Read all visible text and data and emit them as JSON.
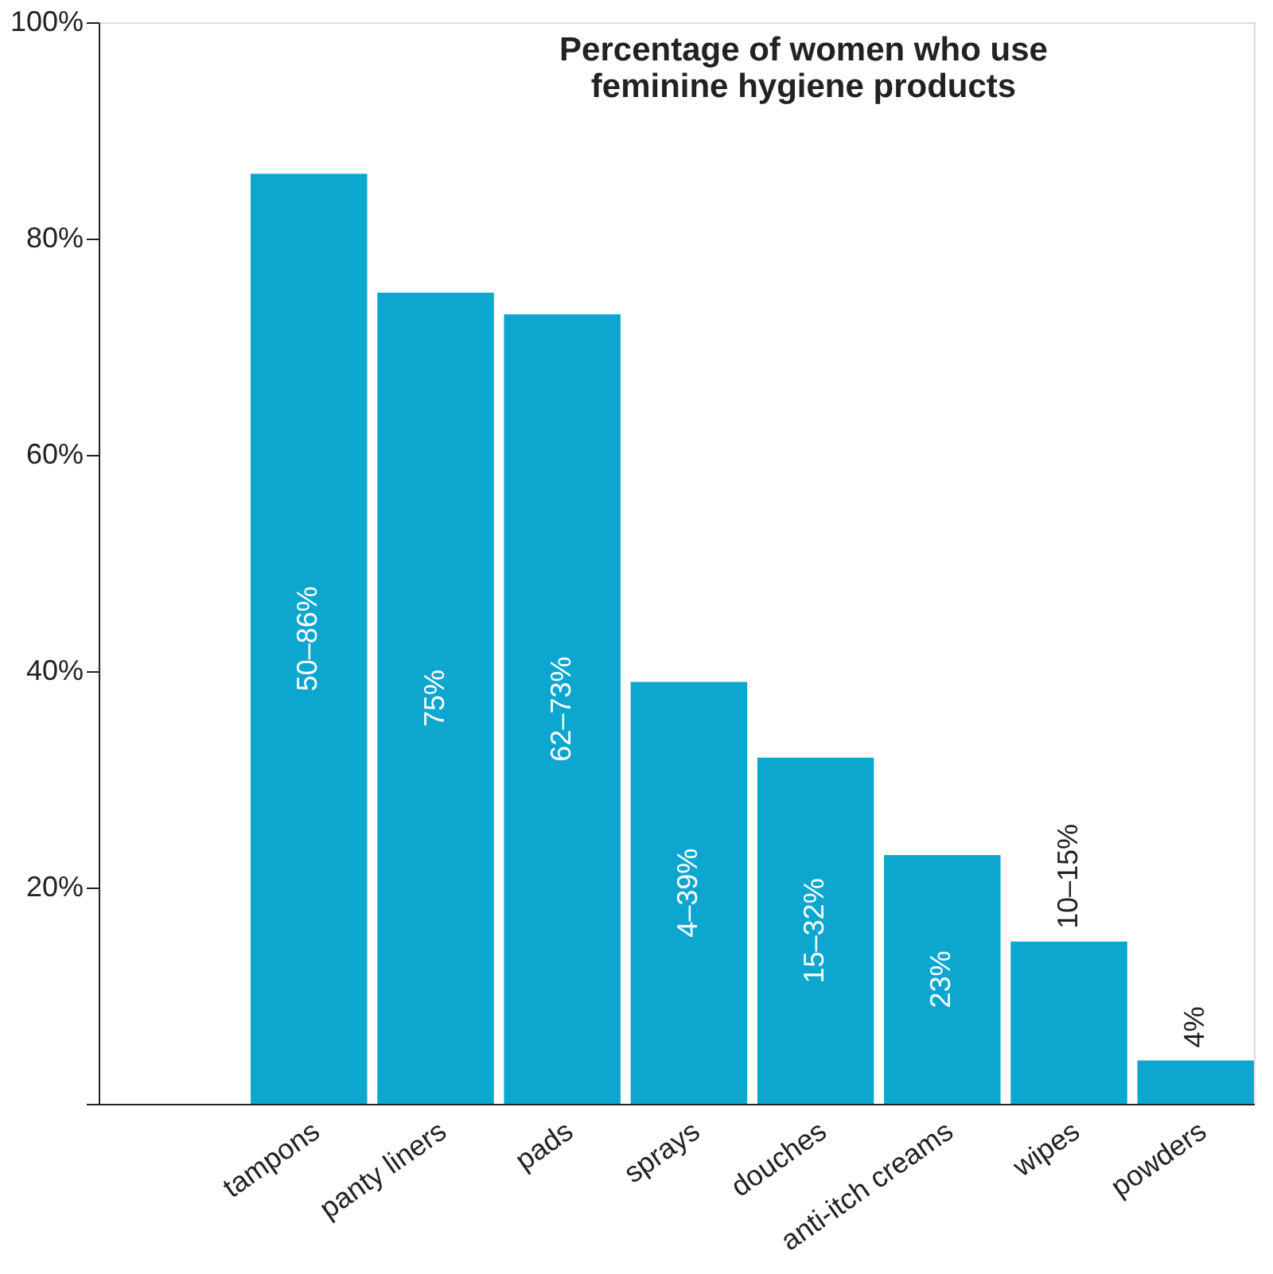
{
  "chart_data": {
    "type": "bar",
    "title": "Percentage of women who use feminine hygiene products",
    "categories": [
      "tampons",
      "panty liners",
      "pads",
      "sprays",
      "douches",
      "anti-itch creams",
      "wipes",
      "powders"
    ],
    "values": [
      86,
      75,
      73,
      39,
      32,
      23,
      15,
      4
    ],
    "annotations": [
      "50–86%",
      "75%",
      "62–73%",
      "4–39%",
      "15–32%",
      "23%",
      "10–15%",
      "4%"
    ],
    "color": "#0ca6cf",
    "ylim": [
      0,
      100
    ],
    "yticks": [
      {
        "value": 0,
        "label": null
      },
      {
        "value": 20,
        "label": "20%"
      },
      {
        "value": 40,
        "label": "40%"
      },
      {
        "value": 60,
        "label": "60%"
      },
      {
        "value": 80,
        "label": "80%"
      },
      {
        "value": 100,
        "label": "100%"
      }
    ],
    "grid": false
  }
}
